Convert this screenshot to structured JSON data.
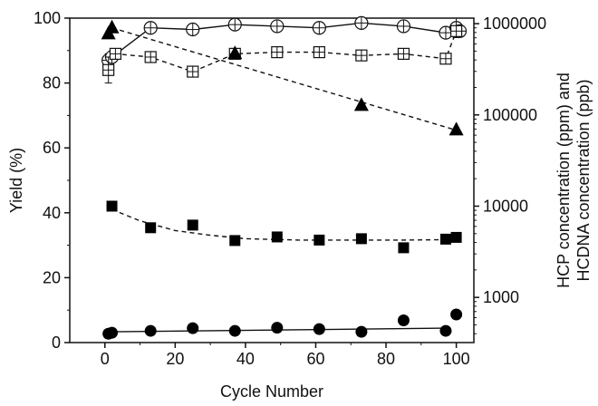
{
  "chart_data": {
    "type": "scatter",
    "xlabel": "Cycle Number",
    "ylabel_left": "Yield (%)",
    "ylabel_right": [
      "HCP concentration (ppm) and",
      "HCDNA concentration (ppb)"
    ],
    "xlim": [
      -10,
      105
    ],
    "ylim_left": [
      0,
      100
    ],
    "ylim_right": [
      320,
      1150000
    ],
    "right_axis_scale": "log",
    "x_ticks": [
      0,
      20,
      40,
      60,
      80,
      100
    ],
    "x_tick_labels": [
      "0",
      "20",
      "40",
      "60",
      "80",
      "100"
    ],
    "y_left_ticks": [
      0,
      20,
      40,
      60,
      80,
      100
    ],
    "y_left_tick_labels": [
      "0",
      "20",
      "40",
      "60",
      "80",
      "100"
    ],
    "y_right_ticks": [
      1000,
      10000,
      100000,
      1000000
    ],
    "y_right_tick_labels": [
      "1000",
      "10000",
      "100000",
      "1000000"
    ],
    "grid": false,
    "legend": "none",
    "series": [
      {
        "axis": "left",
        "marker": "open-circle-cross",
        "line": "solid",
        "x": [
          1,
          2,
          13,
          25,
          37,
          49,
          61,
          73,
          85,
          97,
          100,
          101
        ],
        "y": [
          87,
          88,
          97,
          96.5,
          98,
          97.5,
          97,
          98.5,
          97.5,
          95.5,
          97,
          96
        ],
        "y_err": [
          2,
          0,
          0,
          0,
          0,
          0,
          0,
          0,
          0,
          0,
          3,
          0
        ]
      },
      {
        "axis": "left",
        "marker": "open-square-cross",
        "line": "dashed",
        "x": [
          1,
          3,
          13,
          25,
          37,
          49,
          61,
          73,
          85,
          97,
          100
        ],
        "y": [
          84,
          89,
          88,
          83.5,
          89,
          89.5,
          89.5,
          88.5,
          89,
          87.5,
          96
        ],
        "y_err": [
          4,
          0,
          0,
          0,
          0,
          0,
          0,
          0,
          0,
          0,
          0
        ]
      },
      {
        "axis": "right",
        "marker": "filled-triangle",
        "line": "dashed",
        "x": [
          1,
          2,
          37,
          73,
          100
        ],
        "y": [
          790000,
          920000,
          480000,
          130000,
          70000
        ],
        "fit_x": [
          2,
          100
        ],
        "fit_y": [
          900000,
          68000
        ]
      },
      {
        "axis": "right",
        "marker": "filled-square",
        "line": "dashed",
        "x": [
          2,
          13,
          25,
          37,
          49,
          61,
          73,
          85,
          97,
          100
        ],
        "y": [
          10000,
          5800,
          6200,
          4200,
          4600,
          4250,
          4400,
          3500,
          4350,
          4550
        ],
        "fit_x": [
          2,
          10,
          20,
          30,
          40,
          55,
          70,
          85,
          100
        ],
        "fit_y": [
          9200,
          6900,
          5400,
          4800,
          4400,
          4250,
          4250,
          4250,
          4300
        ]
      },
      {
        "axis": "right",
        "marker": "filled-circle",
        "line": "solid",
        "x": [
          1,
          2,
          13,
          25,
          37,
          49,
          61,
          73,
          85,
          97,
          100
        ],
        "y": [
          400,
          410,
          430,
          460,
          430,
          465,
          450,
          420,
          560,
          430,
          650
        ],
        "fit_x": [
          1,
          97
        ],
        "fit_y": [
          420,
          460
        ]
      }
    ]
  }
}
